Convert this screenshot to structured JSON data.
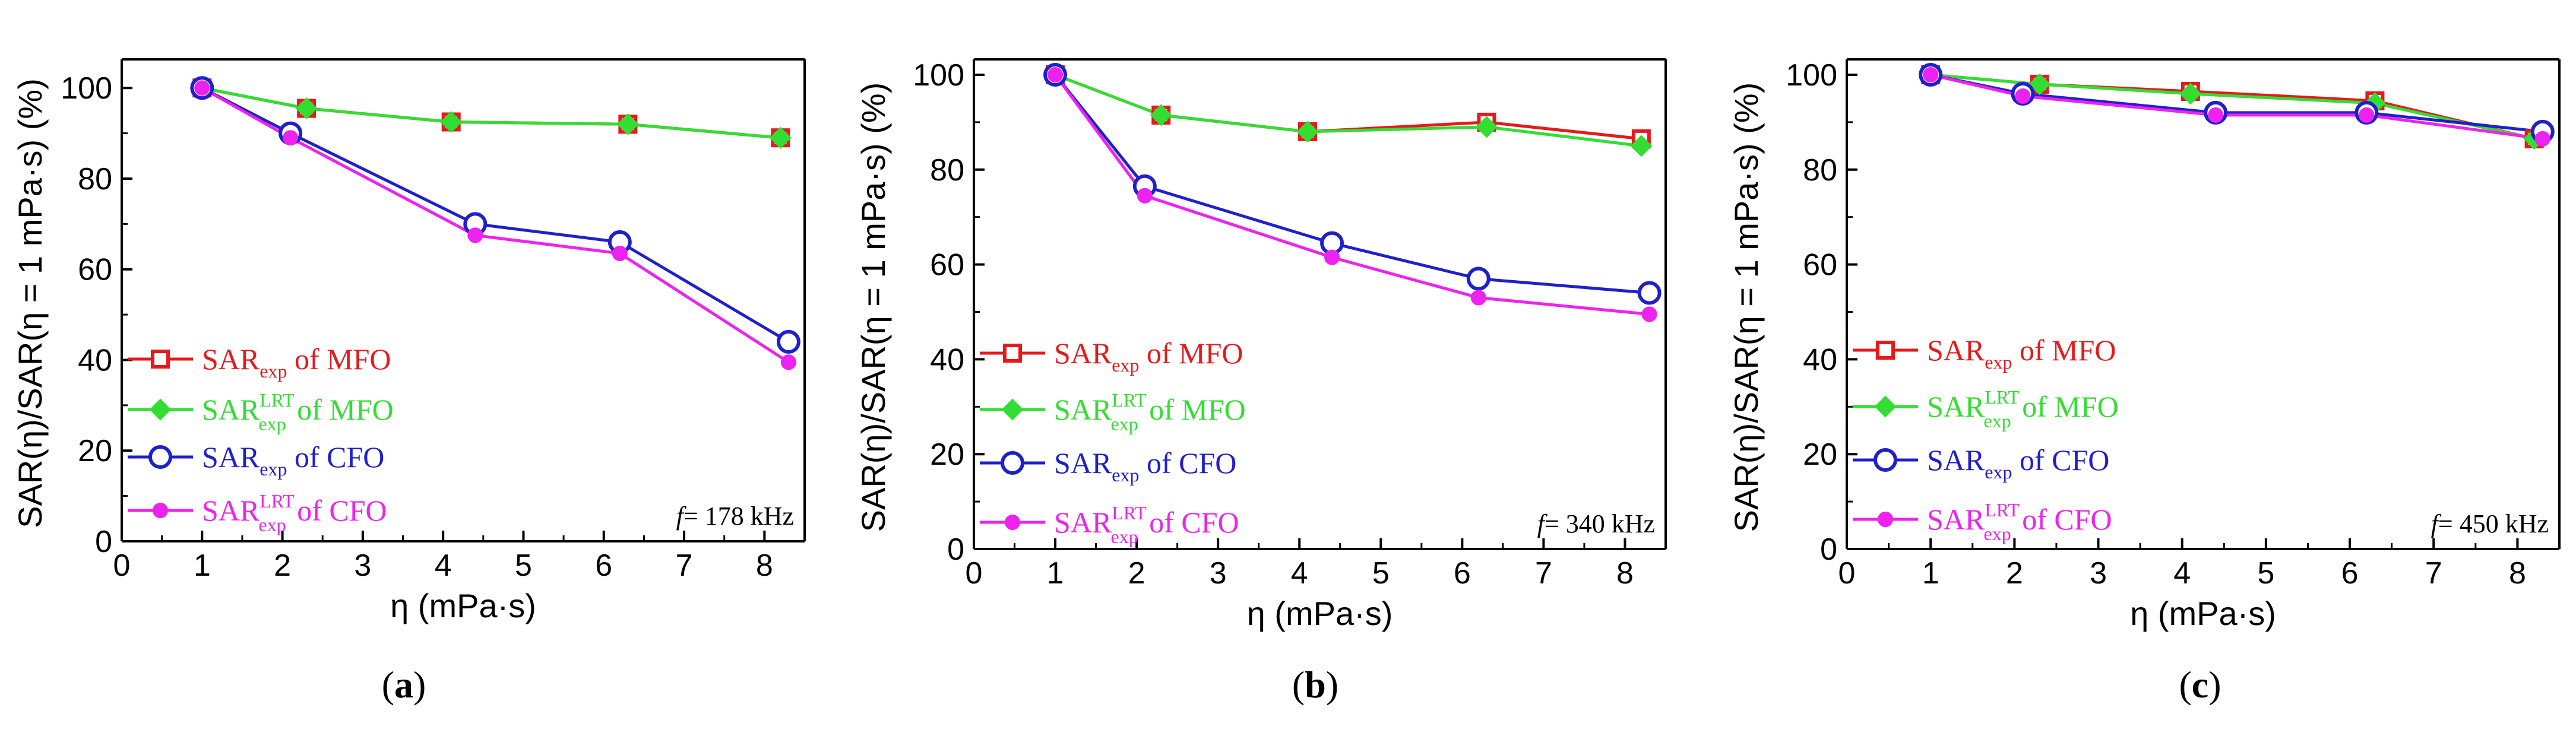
{
  "figure": {
    "xlabel": "η (mPa·s)",
    "ylabel": "SAR(η)/SAR(η = 1 mPa·s) (%)",
    "xticks": [
      0,
      1,
      2,
      3,
      4,
      5,
      6,
      7,
      8
    ],
    "yticks": [
      0,
      20,
      40,
      60,
      80,
      100
    ],
    "legend": [
      {
        "base": "SAR",
        "sub": "exp",
        "sup": "",
        "suffix": " of MFO",
        "color": "#e41a1c",
        "marker": "square-open"
      },
      {
        "base": "SAR",
        "sub": "exp",
        "sup": "LRT",
        "suffix": " of MFO",
        "color": "#33dd33",
        "marker": "diamond-filled"
      },
      {
        "base": "SAR",
        "sub": "exp",
        "sup": "",
        "suffix": " of CFO",
        "color": "#1f1fcc",
        "marker": "circle-open"
      },
      {
        "base": "SAR",
        "sub": "exp",
        "sup": "LRT",
        "suffix": " of CFO",
        "color": "#ee22ee",
        "marker": "circle-filled"
      }
    ]
  },
  "chart_data": [
    {
      "type": "line",
      "panel_label": "(a)",
      "title": "",
      "freq_italic": "f",
      "freq_value": "= 178 kHz",
      "xlabel": "η (mPa·s)",
      "ylabel": "SAR(η)/SAR(η = 1 mPa·s) (%)",
      "xlim": [
        0,
        8.5
      ],
      "ylim": [
        0,
        105
      ],
      "series": [
        {
          "name": "SARexp of MFO",
          "x": [
            1,
            2.3,
            4.1,
            6.3,
            8.2
          ],
          "y": [
            100,
            95.5,
            92.5,
            92,
            89
          ]
        },
        {
          "name": "SARexp LRT of MFO",
          "x": [
            1,
            2.3,
            4.1,
            6.3,
            8.2
          ],
          "y": [
            100,
            95.5,
            92.5,
            92,
            89
          ]
        },
        {
          "name": "SARexp of CFO",
          "x": [
            1,
            2.1,
            4.4,
            6.2,
            8.3
          ],
          "y": [
            100,
            90,
            70,
            66,
            44
          ]
        },
        {
          "name": "SARexp LRT of CFO",
          "x": [
            1,
            2.1,
            4.4,
            6.2,
            8.3
          ],
          "y": [
            100,
            89,
            67.5,
            63.5,
            39.5
          ]
        }
      ]
    },
    {
      "type": "line",
      "panel_label": "(b)",
      "title": "",
      "freq_italic": "f",
      "freq_value": "= 340 kHz",
      "xlabel": "η (mPa·s)",
      "ylabel": "SAR(η)/SAR(η = 1 mPa·s) (%)",
      "xlim": [
        0,
        8.5
      ],
      "ylim": [
        0,
        102
      ],
      "series": [
        {
          "name": "SARexp of MFO",
          "x": [
            1,
            2.3,
            4.1,
            6.3,
            8.2
          ],
          "y": [
            100,
            91.5,
            88,
            90,
            86.5
          ]
        },
        {
          "name": "SARexp LRT of MFO",
          "x": [
            1,
            2.3,
            4.1,
            6.3,
            8.2
          ],
          "y": [
            100,
            91.5,
            88,
            89,
            85
          ]
        },
        {
          "name": "SARexp of CFO",
          "x": [
            1,
            2.1,
            4.4,
            6.2,
            8.3
          ],
          "y": [
            100,
            76.5,
            64.5,
            57,
            54
          ]
        },
        {
          "name": "SARexp LRT of CFO",
          "x": [
            1,
            2.1,
            4.4,
            6.2,
            8.3
          ],
          "y": [
            100,
            74.5,
            61.5,
            53,
            49.5
          ]
        }
      ]
    },
    {
      "type": "line",
      "panel_label": "(c)",
      "title": "",
      "freq_italic": "f",
      "freq_value": "= 450 kHz",
      "xlabel": "η (mPa·s)",
      "ylabel": "SAR(η)/SAR(η = 1 mPa·s) (%)",
      "xlim": [
        0,
        8.5
      ],
      "ylim": [
        0,
        102
      ],
      "series": [
        {
          "name": "SARexp of MFO",
          "x": [
            1,
            2.3,
            4.1,
            6.3,
            8.2
          ],
          "y": [
            100,
            98,
            96.5,
            94.5,
            86.5
          ]
        },
        {
          "name": "SARexp LRT of MFO",
          "x": [
            1,
            2.3,
            4.1,
            6.3,
            8.2
          ],
          "y": [
            100,
            98,
            96,
            94,
            86.5
          ]
        },
        {
          "name": "SARexp of CFO",
          "x": [
            1,
            2.1,
            4.4,
            6.2,
            8.3
          ],
          "y": [
            100,
            96,
            92,
            92,
            88
          ]
        },
        {
          "name": "SARexp LRT of CFO",
          "x": [
            1,
            2.1,
            4.4,
            6.2,
            8.3
          ],
          "y": [
            100,
            95.5,
            91.5,
            91.5,
            86.5
          ]
        }
      ]
    }
  ]
}
